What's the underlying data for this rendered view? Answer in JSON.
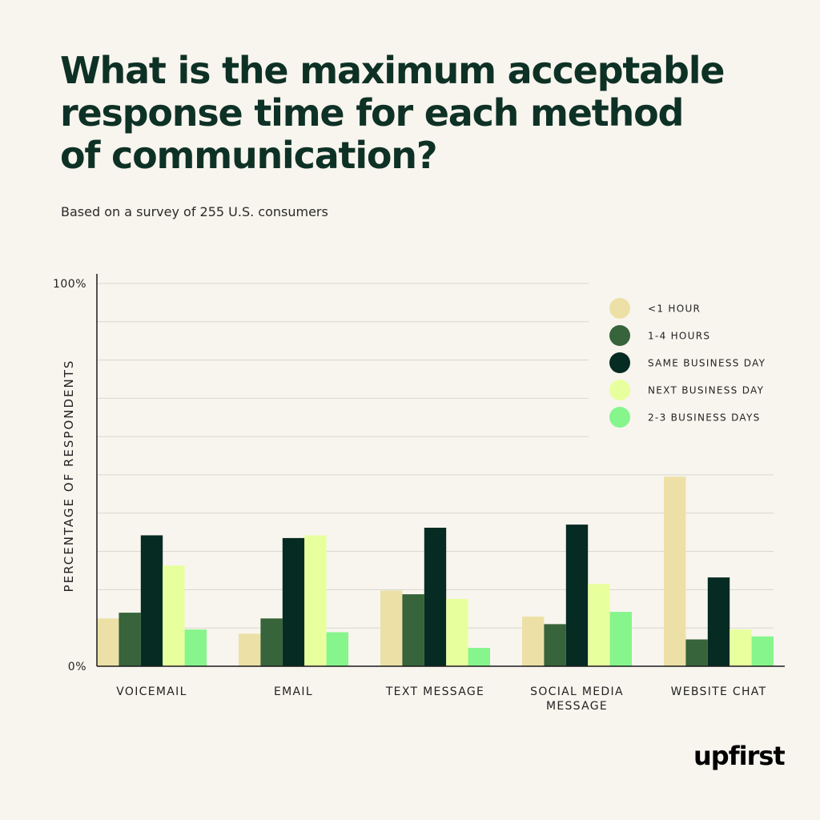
{
  "header": {
    "title_lines": [
      "What is the maximum acceptable",
      "response time for each method",
      "of communication?"
    ],
    "subtitle": "Based on a survey of 255 U.S. consumers"
  },
  "brand": {
    "logo_text": "upfirst"
  },
  "colors": {
    "background": "#f8f5ee",
    "title": "#0e3126",
    "axis": "#1a1a1a",
    "grid": "#d9d6cf"
  },
  "chart_data": {
    "type": "bar",
    "ylabel": "PERCENTAGE OF RESPONDENTS",
    "xlabel": "",
    "ylim": [
      0,
      100
    ],
    "grid": true,
    "y_tick_labels": [
      {
        "value": 100,
        "label": "100%"
      },
      {
        "value": 0,
        "label": "0%"
      }
    ],
    "legend_position": "top-right",
    "categories": [
      "VOICEMAIL",
      "EMAIL",
      "TEXT MESSAGE",
      "SOCIAL MEDIA MESSAGE",
      "WEBSITE CHAT"
    ],
    "category_label_lines": [
      [
        "VOICEMAIL"
      ],
      [
        "EMAIL"
      ],
      [
        "TEXT MESSAGE"
      ],
      [
        "SOCIAL MEDIA",
        "MESSAGE"
      ],
      [
        "WEBSITE CHAT"
      ]
    ],
    "series": [
      {
        "name": "<1 HOUR",
        "color": "#ede0a6",
        "values": [
          12.5,
          8.5,
          19.8,
          13,
          49.5
        ]
      },
      {
        "name": "1-4 HOURS",
        "color": "#37643a",
        "values": [
          14,
          12.5,
          18.8,
          11,
          7
        ]
      },
      {
        "name": "SAME BUSINESS DAY",
        "color": "#052b22",
        "values": [
          34.2,
          33.5,
          36.2,
          37,
          23.2
        ]
      },
      {
        "name": "NEXT BUSINESS DAY",
        "color": "#e8ff9e",
        "values": [
          26.3,
          34.2,
          17.6,
          21.5,
          9.6
        ]
      },
      {
        "name": "2-3 BUSINESS DAYS",
        "color": "#86f58c",
        "values": [
          9.6,
          8.9,
          4.8,
          14.2,
          7.8
        ]
      }
    ]
  }
}
